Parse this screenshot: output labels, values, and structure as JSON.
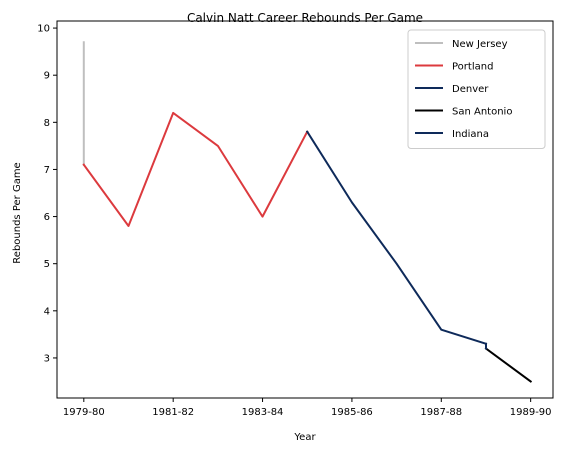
{
  "chart_data": {
    "type": "line",
    "title": "Calvin Natt Career Rebounds Per Game",
    "xlabel": "Year",
    "ylabel": "Rebounds Per Game",
    "x_tick_labels": [
      "1979-80",
      "1981-82",
      "1983-84",
      "1985-86",
      "1987-88",
      "1989-90"
    ],
    "x_tick_positions": [
      0,
      2,
      4,
      6,
      8,
      10
    ],
    "y_ticks": [
      3,
      4,
      5,
      6,
      7,
      8,
      9,
      10
    ],
    "xlim": [
      -0.6,
      10.5
    ],
    "ylim": [
      2.15,
      10.15
    ],
    "grid": false,
    "legend_position": "top-right",
    "series": [
      {
        "name": "New Jersey",
        "color": "#bfbfbf",
        "x": [
          0,
          0
        ],
        "y": [
          9.7,
          7.1
        ]
      },
      {
        "name": "Portland",
        "color": "#dc3a3e",
        "x": [
          0,
          1,
          2,
          3,
          4,
          5
        ],
        "y": [
          7.1,
          5.8,
          8.2,
          7.5,
          6.0,
          7.8
        ]
      },
      {
        "name": "Denver",
        "color": "#0e2a5a",
        "x": [
          5,
          6,
          7,
          8,
          9
        ],
        "y": [
          7.8,
          6.3,
          5.0,
          3.6,
          3.3
        ]
      },
      {
        "name": "San Antonio",
        "color": "#000000",
        "x": [
          9,
          10
        ],
        "y": [
          3.2,
          2.5
        ]
      },
      {
        "name": "Indiana",
        "color": "#0e2a5a",
        "x": [
          9,
          9
        ],
        "y": [
          3.3,
          3.2
        ]
      }
    ]
  }
}
